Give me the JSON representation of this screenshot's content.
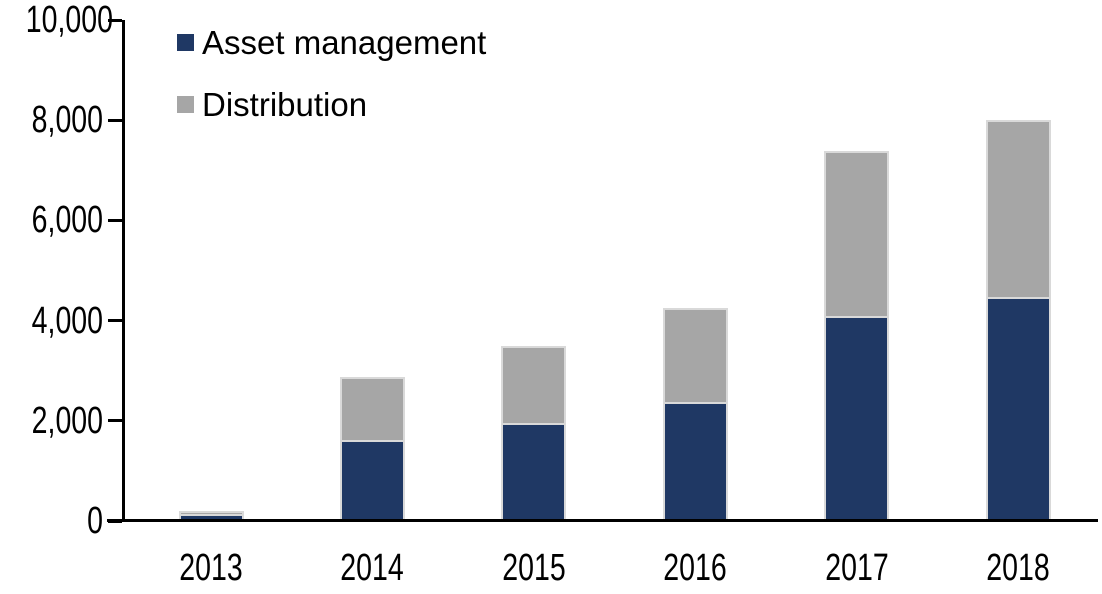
{
  "chart_data": {
    "type": "bar",
    "stacked": true,
    "title": "",
    "xlabel": "",
    "ylabel": "",
    "categories": [
      "2013",
      "2014",
      "2015",
      "2016",
      "2017",
      "2018"
    ],
    "series": [
      {
        "name": "Asset management",
        "color": "#1F3864",
        "values": [
          110,
          1570,
          1920,
          2330,
          4050,
          4430
        ]
      },
      {
        "name": "Distribution",
        "color": "#A6A6A6",
        "values": [
          100,
          1300,
          1580,
          1920,
          3330,
          3570
        ]
      }
    ],
    "totals": [
      210,
      2870,
      3500,
      4250,
      7380,
      8000
    ],
    "ylim": [
      0,
      10000
    ],
    "ytick_interval": 2000,
    "ytick_labels": [
      "0",
      "2,000",
      "4,000",
      "6,000",
      "8,000",
      "10,000"
    ],
    "grid": false,
    "legend_position": "top-left-inside"
  },
  "colors": {
    "axis": "#000000",
    "bar_border": "#D9D9D9",
    "background": "#FFFFFF",
    "asset_management": "#1F3864",
    "distribution": "#A6A6A6"
  }
}
